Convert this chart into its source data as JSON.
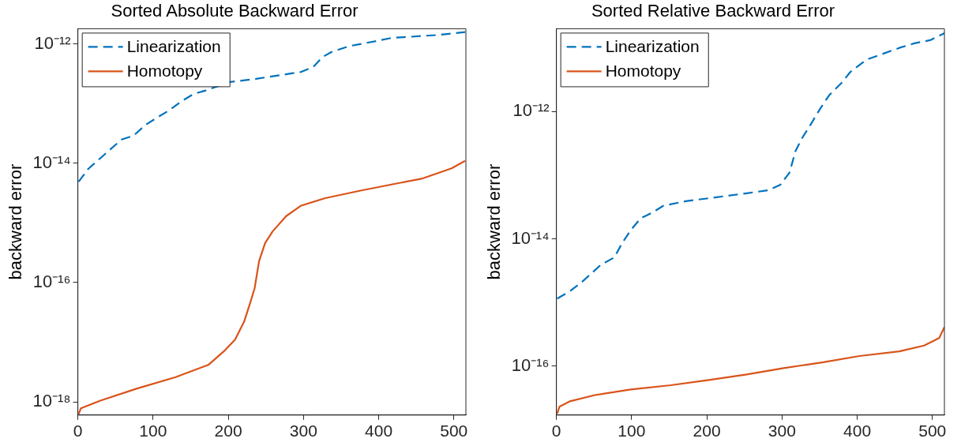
{
  "chart_data": [
    {
      "type": "line",
      "title": "Sorted Absolute Backward Error",
      "ylabel": "backward error",
      "log": "y",
      "grid": false,
      "legend": "top left",
      "marker": "none",
      "xlim": [
        0,
        516
      ],
      "xticks": [
        0,
        100,
        200,
        300,
        400,
        500
      ],
      "ylim": [
        6e-19,
        1.8e-12
      ],
      "yticks": [
        {
          "value": 1e-18,
          "label": "10⁻¹⁸"
        },
        {
          "value": 1e-16,
          "label": "10⁻¹⁶"
        },
        {
          "value": 1e-14,
          "label": "10⁻¹⁴"
        },
        {
          "value": 1e-12,
          "label": "10⁻¹²"
        }
      ],
      "series": [
        {
          "name": "Linearization",
          "color": "#0072bd",
          "line_style": "dashed",
          "x": [
            1,
            14,
            26,
            42,
            58,
            74,
            90,
            106,
            122,
            138,
            154,
            170,
            202,
            237,
            297,
            313,
            325,
            337,
            361,
            397,
            417,
            477,
            515
          ],
          "values": [
            4.9e-15,
            8.1e-15,
            1.1e-14,
            1.66e-14,
            2.5e-14,
            2.9e-14,
            4.4e-14,
            5.9e-14,
            7.8e-14,
            1.1e-13,
            1.45e-13,
            1.66e-13,
            2.3e-13,
            2.6e-13,
            3.4e-13,
            4.1e-13,
            6e-13,
            7.3e-13,
            9.2e-13,
            1.12e-12,
            1.26e-12,
            1.41e-12,
            1.58e-12
          ]
        },
        {
          "name": "Homotopy",
          "color": "#d95319",
          "line_style": "solid",
          "x": [
            1,
            4,
            30,
            78,
            130,
            174,
            194,
            209,
            221,
            229,
            235,
            241,
            249,
            259,
            277,
            297,
            329,
            377,
            417,
            457,
            497,
            515
          ],
          "values": [
            6.2e-19,
            7.8e-19,
            1.05e-18,
            1.66e-18,
            2.6e-18,
            4.2e-18,
            7e-18,
            1.1e-17,
            2.2e-17,
            4.5e-17,
            8e-17,
            2.3e-16,
            4.6e-16,
            7.2e-16,
            1.3e-15,
            1.95e-15,
            2.6e-15,
            3.5e-15,
            4.4e-15,
            5.5e-15,
            8.2e-15,
            1.1e-14
          ]
        }
      ]
    },
    {
      "type": "line",
      "title": "Sorted Relative Backward Error",
      "ylabel": "backward error",
      "log": "y",
      "grid": false,
      "legend": "top left",
      "marker": "none",
      "xlim": [
        0,
        516
      ],
      "xticks": [
        0,
        100,
        200,
        300,
        400,
        500
      ],
      "ylim": [
        1.7e-17,
        2e-11
      ],
      "yticks": [
        {
          "value": 1e-16,
          "label": "10⁻¹⁶"
        },
        {
          "value": 1e-14,
          "label": "10⁻¹⁴"
        },
        {
          "value": 1e-12,
          "label": "10⁻¹²"
        }
      ],
      "series": [
        {
          "name": "Linearization",
          "color": "#0072bd",
          "line_style": "dashed",
          "x": [
            1,
            18,
            34,
            59,
            77,
            87,
            99,
            112,
            128,
            142,
            172,
            213,
            253,
            282,
            298,
            310,
            318,
            326,
            339,
            351,
            363,
            379,
            391,
            412,
            456,
            476,
            497,
            516
          ],
          "values": [
            1.15e-15,
            1.5e-15,
            2.1e-15,
            3.9e-15,
            5.1e-15,
            8.4e-15,
            1.37e-14,
            2.1e-14,
            2.6e-14,
            3.3e-14,
            3.9e-14,
            4.5e-14,
            5.2e-14,
            5.8e-14,
            7.1e-14,
            1.1e-13,
            2.4e-13,
            3.7e-13,
            6.5e-13,
            1.12e-12,
            1.82e-12,
            2.8e-12,
            4.2e-12,
            6.5e-12,
            1e-11,
            1.18e-11,
            1.32e-11,
            1.7e-11
          ]
        },
        {
          "name": "Homotopy",
          "color": "#d95319",
          "line_style": "solid",
          "x": [
            1,
            4,
            18,
            51,
            99,
            152,
            201,
            253,
            302,
            355,
            403,
            456,
            489,
            509,
            516
          ],
          "values": [
            1.78e-17,
            2.3e-17,
            2.8e-17,
            3.5e-17,
            4.3e-17,
            5e-17,
            6e-17,
            7.4e-17,
            9.3e-17,
            1.15e-16,
            1.44e-16,
            1.7e-16,
            2.1e-16,
            2.75e-16,
            4.1e-16
          ]
        }
      ]
    }
  ]
}
